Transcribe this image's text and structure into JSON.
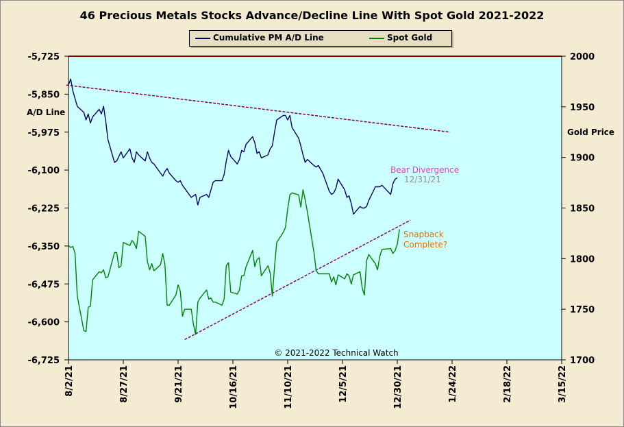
{
  "chart_data": {
    "type": "line",
    "title": "46 Precious Metals Stocks Advance/Decline Line With Spot Gold 2021-2022",
    "ylabel_left": "A/D Line",
    "ylabel_right": "Gold Price",
    "y_left_range": [
      -6725,
      -5725
    ],
    "y_left_ticks": [
      "-5,725",
      "-5,850",
      "-5,975",
      "-6,100",
      "-6,225",
      "-6,350",
      "-6,475",
      "-6,600",
      "-6,725"
    ],
    "y_right_range": [
      1700,
      2000
    ],
    "y_right_ticks": [
      "2000",
      "1950",
      "1900",
      "1850",
      "1800",
      "1750",
      "1700"
    ],
    "x_range": [
      "2021-08-02",
      "2022-03-15"
    ],
    "x_ticks": [
      "8/2/21",
      "8/27/21",
      "9/21/21",
      "10/16/21",
      "11/10/21",
      "12/5/21",
      "12/30/21",
      "1/24/22",
      "2/18/22",
      "3/15/22"
    ],
    "copyright": "© 2021-2022 Technical Watch",
    "series": [
      {
        "name": "Cumulative PM A/D Line",
        "axis": "left",
        "color": "#000066",
        "points": [
          [
            "2021-08-02",
            -5820
          ],
          [
            "2021-08-03",
            -5800
          ],
          [
            "2021-08-04",
            -5840
          ],
          [
            "2021-08-06",
            -5890
          ],
          [
            "2021-08-09",
            -5910
          ],
          [
            "2021-08-10",
            -5935
          ],
          [
            "2021-08-11",
            -5915
          ],
          [
            "2021-08-12",
            -5945
          ],
          [
            "2021-08-13",
            -5925
          ],
          [
            "2021-08-16",
            -5900
          ],
          [
            "2021-08-17",
            -5915
          ],
          [
            "2021-08-18",
            -5890
          ],
          [
            "2021-08-19",
            -5940
          ],
          [
            "2021-08-20",
            -6000
          ],
          [
            "2021-08-23",
            -6075
          ],
          [
            "2021-08-24",
            -6070
          ],
          [
            "2021-08-25",
            -6055
          ],
          [
            "2021-08-26",
            -6040
          ],
          [
            "2021-08-27",
            -6060
          ],
          [
            "2021-08-30",
            -6030
          ],
          [
            "2021-08-31",
            -6060
          ],
          [
            "2021-09-01",
            -6075
          ],
          [
            "2021-09-02",
            -6040
          ],
          [
            "2021-09-03",
            -6050
          ],
          [
            "2021-09-06",
            -6070
          ],
          [
            "2021-09-07",
            -6040
          ],
          [
            "2021-09-08",
            -6060
          ],
          [
            "2021-09-09",
            -6075
          ],
          [
            "2021-09-10",
            -6080
          ],
          [
            "2021-09-13",
            -6110
          ],
          [
            "2021-09-14",
            -6120
          ],
          [
            "2021-09-15",
            -6105
          ],
          [
            "2021-09-16",
            -6095
          ],
          [
            "2021-09-17",
            -6110
          ],
          [
            "2021-09-20",
            -6135
          ],
          [
            "2021-09-21",
            -6140
          ],
          [
            "2021-09-22",
            -6135
          ],
          [
            "2021-09-23",
            -6150
          ],
          [
            "2021-09-24",
            -6160
          ],
          [
            "2021-09-27",
            -6190
          ],
          [
            "2021-09-28",
            -6185
          ],
          [
            "2021-09-29",
            -6180
          ],
          [
            "2021-09-30",
            -6215
          ],
          [
            "2021-10-01",
            -6190
          ],
          [
            "2021-10-04",
            -6180
          ],
          [
            "2021-10-05",
            -6190
          ],
          [
            "2021-10-06",
            -6165
          ],
          [
            "2021-10-07",
            -6140
          ],
          [
            "2021-10-08",
            -6135
          ],
          [
            "2021-10-11",
            -6135
          ],
          [
            "2021-10-12",
            -6115
          ],
          [
            "2021-10-13",
            -6070
          ],
          [
            "2021-10-14",
            -6035
          ],
          [
            "2021-10-15",
            -6055
          ],
          [
            "2021-10-18",
            -6080
          ],
          [
            "2021-10-19",
            -6065
          ],
          [
            "2021-10-20",
            -6035
          ],
          [
            "2021-10-21",
            -6040
          ],
          [
            "2021-10-22",
            -6015
          ],
          [
            "2021-10-25",
            -5990
          ],
          [
            "2021-10-26",
            -6010
          ],
          [
            "2021-10-27",
            -6045
          ],
          [
            "2021-10-28",
            -6040
          ],
          [
            "2021-10-29",
            -6060
          ],
          [
            "2021-11-01",
            -6050
          ],
          [
            "2021-11-02",
            -6030
          ],
          [
            "2021-11-03",
            -6020
          ],
          [
            "2021-11-04",
            -5975
          ],
          [
            "2021-11-05",
            -5935
          ],
          [
            "2021-11-08",
            -5920
          ],
          [
            "2021-11-09",
            -5920
          ],
          [
            "2021-11-10",
            -5935
          ],
          [
            "2021-11-11",
            -5920
          ],
          [
            "2021-11-12",
            -5960
          ],
          [
            "2021-11-15",
            -5995
          ],
          [
            "2021-11-16",
            -6020
          ],
          [
            "2021-11-17",
            -6050
          ],
          [
            "2021-11-18",
            -6075
          ],
          [
            "2021-11-19",
            -6065
          ],
          [
            "2021-11-22",
            -6085
          ],
          [
            "2021-11-23",
            -6090
          ],
          [
            "2021-11-24",
            -6085
          ],
          [
            "2021-11-26",
            -6110
          ],
          [
            "2021-11-29",
            -6170
          ],
          [
            "2021-11-30",
            -6180
          ],
          [
            "2021-12-01",
            -6175
          ],
          [
            "2021-12-02",
            -6160
          ],
          [
            "2021-12-03",
            -6130
          ],
          [
            "2021-12-06",
            -6165
          ],
          [
            "2021-12-07",
            -6190
          ],
          [
            "2021-12-08",
            -6185
          ],
          [
            "2021-12-09",
            -6210
          ],
          [
            "2021-12-10",
            -6245
          ],
          [
            "2021-12-13",
            -6220
          ],
          [
            "2021-12-14",
            -6225
          ],
          [
            "2021-12-15",
            -6225
          ],
          [
            "2021-12-16",
            -6220
          ],
          [
            "2021-12-17",
            -6200
          ],
          [
            "2021-12-20",
            -6155
          ],
          [
            "2021-12-21",
            -6155
          ],
          [
            "2021-12-22",
            -6155
          ],
          [
            "2021-12-23",
            -6150
          ],
          [
            "2021-12-27",
            -6180
          ],
          [
            "2021-12-28",
            -6145
          ],
          [
            "2021-12-29",
            -6130
          ],
          [
            "2021-12-30",
            -6125
          ]
        ]
      },
      {
        "name": "Spot Gold",
        "axis": "right",
        "color": "#008000",
        "points": [
          [
            "2021-08-02",
            1813
          ],
          [
            "2021-08-03",
            1811
          ],
          [
            "2021-08-04",
            1812
          ],
          [
            "2021-08-05",
            1805
          ],
          [
            "2021-08-06",
            1763
          ],
          [
            "2021-08-09",
            1729
          ],
          [
            "2021-08-10",
            1728
          ],
          [
            "2021-08-11",
            1752
          ],
          [
            "2021-08-12",
            1753
          ],
          [
            "2021-08-13",
            1779
          ],
          [
            "2021-08-16",
            1787
          ],
          [
            "2021-08-17",
            1786
          ],
          [
            "2021-08-18",
            1789
          ],
          [
            "2021-08-19",
            1781
          ],
          [
            "2021-08-20",
            1782
          ],
          [
            "2021-08-23",
            1806
          ],
          [
            "2021-08-24",
            1806
          ],
          [
            "2021-08-25",
            1791
          ],
          [
            "2021-08-26",
            1793
          ],
          [
            "2021-08-27",
            1816
          ],
          [
            "2021-08-30",
            1813
          ],
          [
            "2021-08-31",
            1818
          ],
          [
            "2021-09-01",
            1815
          ],
          [
            "2021-09-02",
            1810
          ],
          [
            "2021-09-03",
            1827
          ],
          [
            "2021-09-06",
            1822
          ],
          [
            "2021-09-07",
            1797
          ],
          [
            "2021-09-08",
            1789
          ],
          [
            "2021-09-09",
            1795
          ],
          [
            "2021-09-10",
            1788
          ],
          [
            "2021-09-13",
            1794
          ],
          [
            "2021-09-14",
            1805
          ],
          [
            "2021-09-15",
            1794
          ],
          [
            "2021-09-16",
            1754
          ],
          [
            "2021-09-17",
            1754
          ],
          [
            "2021-09-20",
            1764
          ],
          [
            "2021-09-21",
            1774
          ],
          [
            "2021-09-22",
            1768
          ],
          [
            "2021-09-23",
            1743
          ],
          [
            "2021-09-24",
            1750
          ],
          [
            "2021-09-27",
            1750
          ],
          [
            "2021-09-28",
            1735
          ],
          [
            "2021-09-29",
            1725
          ],
          [
            "2021-09-30",
            1757
          ],
          [
            "2021-10-01",
            1761
          ],
          [
            "2021-10-04",
            1769
          ],
          [
            "2021-10-05",
            1760
          ],
          [
            "2021-10-06",
            1761
          ],
          [
            "2021-10-07",
            1757
          ],
          [
            "2021-10-08",
            1757
          ],
          [
            "2021-10-11",
            1754
          ],
          [
            "2021-10-12",
            1760
          ],
          [
            "2021-10-13",
            1793
          ],
          [
            "2021-10-14",
            1796
          ],
          [
            "2021-10-15",
            1767
          ],
          [
            "2021-10-18",
            1765
          ],
          [
            "2021-10-19",
            1769
          ],
          [
            "2021-10-20",
            1783
          ],
          [
            "2021-10-21",
            1783
          ],
          [
            "2021-10-22",
            1792
          ],
          [
            "2021-10-25",
            1808
          ],
          [
            "2021-10-26",
            1792
          ],
          [
            "2021-10-27",
            1799
          ],
          [
            "2021-10-28",
            1801
          ],
          [
            "2021-10-29",
            1783
          ],
          [
            "2021-11-01",
            1793
          ],
          [
            "2021-11-02",
            1786
          ],
          [
            "2021-11-03",
            1763
          ],
          [
            "2021-11-04",
            1792
          ],
          [
            "2021-11-05",
            1816
          ],
          [
            "2021-11-08",
            1826
          ],
          [
            "2021-11-09",
            1831
          ],
          [
            "2021-11-10",
            1849
          ],
          [
            "2021-11-11",
            1863
          ],
          [
            "2021-11-12",
            1865
          ],
          [
            "2021-11-15",
            1863
          ],
          [
            "2021-11-16",
            1851
          ],
          [
            "2021-11-17",
            1868
          ],
          [
            "2021-11-18",
            1858
          ],
          [
            "2021-11-19",
            1846
          ],
          [
            "2021-11-22",
            1806
          ],
          [
            "2021-11-23",
            1788
          ],
          [
            "2021-11-24",
            1785
          ],
          [
            "2021-11-26",
            1785
          ],
          [
            "2021-11-29",
            1785
          ],
          [
            "2021-11-30",
            1777
          ],
          [
            "2021-12-01",
            1782
          ],
          [
            "2021-12-02",
            1774
          ],
          [
            "2021-12-03",
            1784
          ],
          [
            "2021-12-06",
            1780
          ],
          [
            "2021-12-07",
            1785
          ],
          [
            "2021-12-08",
            1783
          ],
          [
            "2021-12-09",
            1775
          ],
          [
            "2021-12-10",
            1784
          ],
          [
            "2021-12-13",
            1787
          ],
          [
            "2021-12-14",
            1771
          ],
          [
            "2021-12-15",
            1764
          ],
          [
            "2021-12-16",
            1798
          ],
          [
            "2021-12-17",
            1804
          ],
          [
            "2021-12-20",
            1795
          ],
          [
            "2021-12-21",
            1789
          ],
          [
            "2021-12-22",
            1802
          ],
          [
            "2021-12-23",
            1809
          ],
          [
            "2021-12-27",
            1810
          ],
          [
            "2021-12-28",
            1805
          ],
          [
            "2021-12-29",
            1808
          ],
          [
            "2021-12-30",
            1814
          ],
          [
            "2021-12-31",
            1829
          ]
        ]
      }
    ],
    "trendlines": [
      {
        "axis": "left",
        "color": "#800040",
        "style": "dashed",
        "from": [
          "2021-08-01",
          -5820
        ],
        "to": [
          "2022-01-23",
          -5975
        ]
      },
      {
        "axis": "right",
        "color": "#800080",
        "style": "dashed",
        "from": [
          "2021-09-24",
          1720
        ],
        "to": [
          "2022-01-05",
          1838
        ]
      }
    ],
    "annotations": [
      {
        "text": "Bear Divergence",
        "color": "#ff33cc"
      },
      {
        "text": "12/31/21",
        "color": "#909090"
      },
      {
        "text": "Snapback",
        "color": "#e07000"
      },
      {
        "text": "Complete?",
        "color": "#e07000"
      }
    ]
  }
}
